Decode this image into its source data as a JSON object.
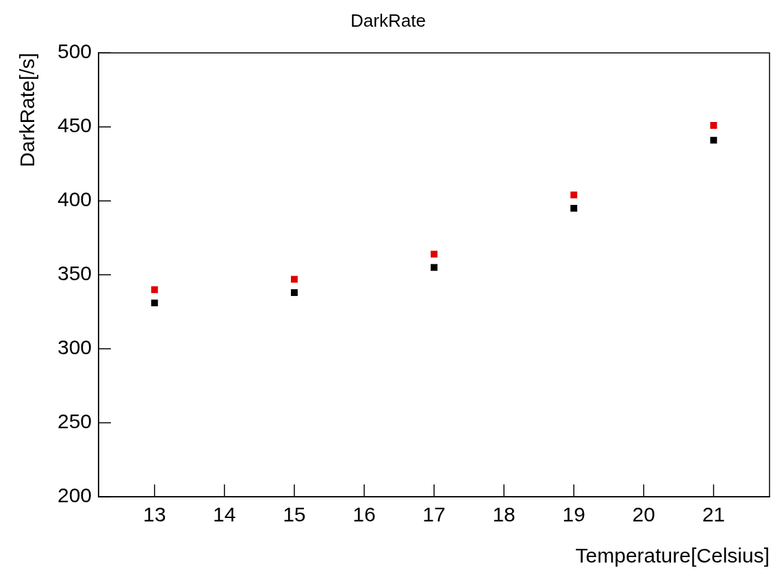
{
  "chart_data": {
    "type": "scatter",
    "title": "DarkRate",
    "xlabel": "Temperature[Celsius]",
    "ylabel": "DarkRate[/s]",
    "x": [
      13,
      15,
      17,
      19,
      21
    ],
    "series": [
      {
        "color": "#e00000",
        "values": [
          340,
          347,
          364,
          404,
          451
        ]
      },
      {
        "color": "#000000",
        "values": [
          331,
          338,
          355,
          395,
          441
        ]
      }
    ],
    "xlim": [
      12.2,
      21.8
    ],
    "xticks": [
      13,
      14,
      15,
      16,
      17,
      18,
      19,
      20,
      21
    ],
    "ylim": [
      200,
      500
    ],
    "yticks": [
      200,
      250,
      300,
      350,
      400,
      450,
      500
    ],
    "marker": "square",
    "grid": false,
    "legend": false
  }
}
